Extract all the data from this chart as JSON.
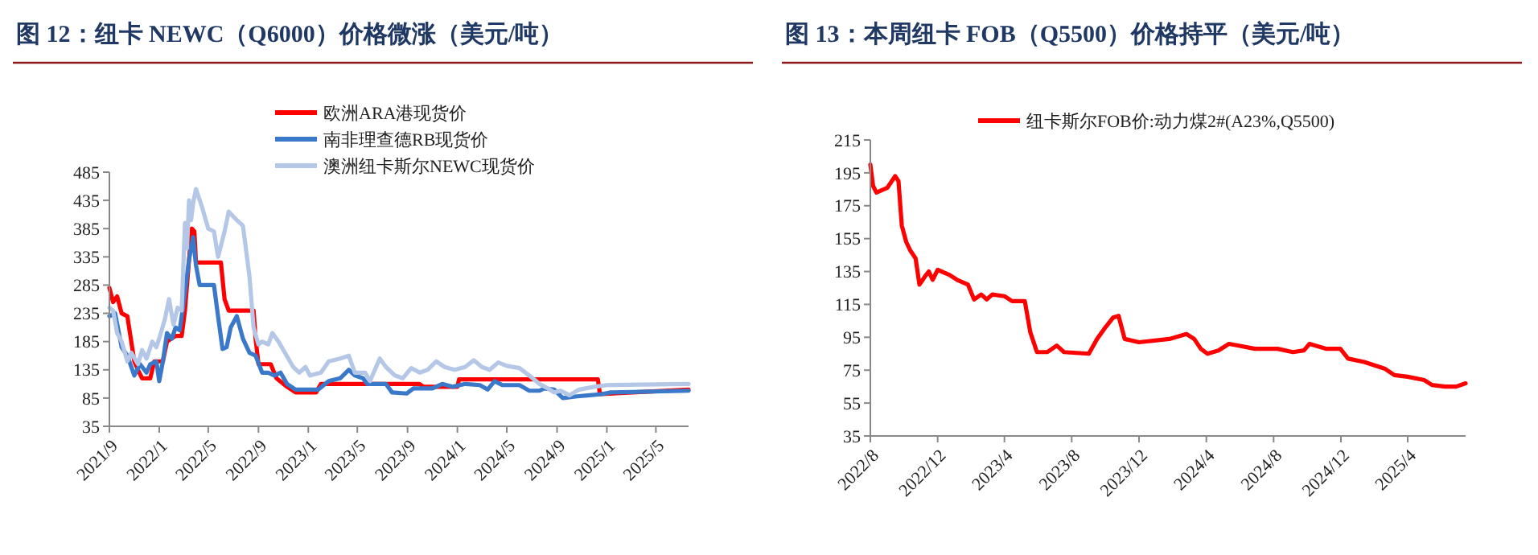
{
  "chart_data": [
    {
      "type": "line",
      "title": "图 12：纽卡 NEWC（Q6000）价格微涨（美元/吨）",
      "legend": "top",
      "xlim": [
        "2021-09-01",
        "2025-07-20"
      ],
      "xticks": [
        {
          "value": "2021-09-01",
          "label": "2021/9"
        },
        {
          "value": "2022-01-01",
          "label": "2022/1"
        },
        {
          "value": "2022-05-01",
          "label": "2022/5"
        },
        {
          "value": "2022-09-01",
          "label": "2022/9"
        },
        {
          "value": "2023-01-01",
          "label": "2023/1"
        },
        {
          "value": "2023-05-01",
          "label": "2023/5"
        },
        {
          "value": "2023-09-01",
          "label": "2023/9"
        },
        {
          "value": "2024-01-01",
          "label": "2024/1"
        },
        {
          "value": "2024-05-01",
          "label": "2024/5"
        },
        {
          "value": "2024-09-01",
          "label": "2024/9"
        },
        {
          "value": "2025-01-01",
          "label": "2025/1"
        },
        {
          "value": "2025-05-01",
          "label": "2025/5"
        }
      ],
      "ylim": [
        35,
        485
      ],
      "yticks": [
        35,
        85,
        135,
        185,
        235,
        285,
        335,
        385,
        435,
        485
      ],
      "series": [
        {
          "name": "欧洲ARA港现货价",
          "color": "#ff0000",
          "x": [
            "2021-09-01",
            "2021-09-10",
            "2021-09-20",
            "2021-10-01",
            "2021-10-15",
            "2021-11-01",
            "2021-11-10",
            "2021-11-20",
            "2021-12-10",
            "2021-12-20",
            "2022-01-10",
            "2022-01-20",
            "2022-02-10",
            "2022-02-25",
            "2022-03-05",
            "2022-03-15",
            "2022-03-22",
            "2022-03-28",
            "2022-04-01",
            "2022-06-01",
            "2022-06-10",
            "2022-06-20",
            "2022-08-20",
            "2022-08-25",
            "2022-09-01",
            "2022-10-01",
            "2022-10-15",
            "2022-11-10",
            "2022-12-01",
            "2023-01-20",
            "2023-02-01",
            "2023-09-30",
            "2023-10-10",
            "2024-01-01",
            "2024-01-05",
            "2024-12-10",
            "2024-12-15",
            "2025-07-20"
          ],
          "values": [
            280,
            255,
            265,
            235,
            230,
            150,
            135,
            120,
            120,
            150,
            150,
            185,
            195,
            195,
            240,
            330,
            385,
            380,
            325,
            325,
            260,
            240,
            240,
            190,
            145,
            145,
            120,
            105,
            95,
            95,
            110,
            110,
            105,
            105,
            118,
            118,
            92,
            100
          ]
        },
        {
          "name": "南非理查德RB现货价",
          "color": "#3a78c9",
          "x": [
            "2021-09-01",
            "2021-09-15",
            "2021-10-01",
            "2021-10-15",
            "2021-11-01",
            "2021-11-15",
            "2021-12-01",
            "2021-12-10",
            "2021-12-25",
            "2022-01-01",
            "2022-01-10",
            "2022-01-20",
            "2022-02-01",
            "2022-02-10",
            "2022-02-20",
            "2022-03-01",
            "2022-03-15",
            "2022-03-25",
            "2022-04-01",
            "2022-04-10",
            "2022-05-15",
            "2022-05-25",
            "2022-06-05",
            "2022-06-15",
            "2022-06-25",
            "2022-07-10",
            "2022-07-25",
            "2022-08-10",
            "2022-08-25",
            "2022-09-10",
            "2022-09-25",
            "2022-10-10",
            "2022-10-25",
            "2022-11-10",
            "2022-12-01",
            "2023-01-10",
            "2023-01-25",
            "2023-02-20",
            "2023-03-20",
            "2023-04-10",
            "2023-04-25",
            "2023-05-15",
            "2023-05-25",
            "2023-07-10",
            "2023-07-25",
            "2023-08-30",
            "2023-09-15",
            "2023-11-01",
            "2023-11-25",
            "2023-12-20",
            "2024-01-20",
            "2024-02-25",
            "2024-03-15",
            "2024-04-01",
            "2024-04-20",
            "2024-06-01",
            "2024-06-25",
            "2024-07-20",
            "2024-08-01",
            "2024-08-25",
            "2024-09-15",
            "2024-10-20",
            "2024-11-20",
            "2024-12-20",
            "2025-01-10",
            "2025-07-20"
          ],
          "values": [
            230,
            235,
            175,
            160,
            125,
            145,
            130,
            145,
            150,
            115,
            150,
            200,
            190,
            210,
            205,
            250,
            330,
            370,
            320,
            285,
            285,
            230,
            172,
            175,
            210,
            230,
            190,
            165,
            160,
            130,
            130,
            125,
            130,
            110,
            100,
            100,
            100,
            115,
            120,
            135,
            125,
            120,
            110,
            110,
            95,
            93,
            102,
            102,
            110,
            105,
            110,
            108,
            100,
            115,
            108,
            108,
            98,
            98,
            102,
            100,
            85,
            88,
            90,
            92,
            95,
            98
          ]
        },
        {
          "name": "澳洲纽卡斯尔NEWC现货价",
          "color": "#b4c7e7",
          "x": [
            "2021-09-01",
            "2021-09-10",
            "2021-09-20",
            "2021-10-01",
            "2021-10-15",
            "2021-10-25",
            "2021-11-10",
            "2021-11-20",
            "2021-12-01",
            "2021-12-15",
            "2021-12-25",
            "2022-01-05",
            "2022-01-15",
            "2022-01-25",
            "2022-02-05",
            "2022-02-15",
            "2022-02-25",
            "2022-03-05",
            "2022-03-10",
            "2022-03-15",
            "2022-03-20",
            "2022-03-25",
            "2022-04-01",
            "2022-04-15",
            "2022-05-01",
            "2022-05-15",
            "2022-05-25",
            "2022-06-10",
            "2022-06-20",
            "2022-07-10",
            "2022-07-25",
            "2022-08-10",
            "2022-08-20",
            "2022-09-01",
            "2022-09-10",
            "2022-09-25",
            "2022-10-05",
            "2022-10-20",
            "2022-11-05",
            "2022-11-25",
            "2022-12-10",
            "2022-12-25",
            "2023-01-05",
            "2023-02-01",
            "2023-02-20",
            "2023-03-20",
            "2023-04-10",
            "2023-04-25",
            "2023-05-20",
            "2023-06-01",
            "2023-06-25",
            "2023-07-10",
            "2023-08-01",
            "2023-08-20",
            "2023-09-10",
            "2023-10-01",
            "2023-10-20",
            "2023-11-10",
            "2023-12-01",
            "2023-12-25",
            "2024-01-20",
            "2024-02-10",
            "2024-03-01",
            "2024-03-20",
            "2024-04-10",
            "2024-05-01",
            "2024-06-01",
            "2024-06-25",
            "2024-07-20",
            "2024-08-10",
            "2024-08-25",
            "2024-09-10",
            "2024-10-01",
            "2024-10-25",
            "2024-12-01",
            "2025-01-01",
            "2025-07-20"
          ],
          "values": [
            245,
            240,
            200,
            185,
            150,
            165,
            145,
            170,
            155,
            185,
            175,
            200,
            225,
            260,
            215,
            245,
            240,
            395,
            350,
            435,
            400,
            430,
            455,
            425,
            385,
            380,
            335,
            380,
            415,
            400,
            390,
            300,
            210,
            180,
            185,
            180,
            200,
            185,
            165,
            140,
            130,
            140,
            125,
            130,
            150,
            155,
            160,
            130,
            130,
            115,
            155,
            140,
            125,
            120,
            138,
            130,
            135,
            150,
            140,
            135,
            140,
            152,
            140,
            135,
            148,
            142,
            138,
            125,
            110,
            102,
            95,
            98,
            90,
            100,
            105,
            108,
            110
          ]
        }
      ]
    },
    {
      "type": "line",
      "title": "图 13：本周纽卡 FOB（Q5500）价格持平（美元/吨）",
      "legend": "top",
      "xlim": [
        "2022-08-01",
        "2025-07-15"
      ],
      "xticks": [
        {
          "value": "2022-08-01",
          "label": "2022/8"
        },
        {
          "value": "2022-12-01",
          "label": "2022/12"
        },
        {
          "value": "2023-04-01",
          "label": "2023/4"
        },
        {
          "value": "2023-08-01",
          "label": "2023/8"
        },
        {
          "value": "2023-12-01",
          "label": "2023/12"
        },
        {
          "value": "2024-04-01",
          "label": "2024/4"
        },
        {
          "value": "2024-08-01",
          "label": "2024/8"
        },
        {
          "value": "2024-12-01",
          "label": "2024/12"
        },
        {
          "value": "2025-04-01",
          "label": "2025/4"
        }
      ],
      "ylim": [
        35,
        215
      ],
      "yticks": [
        35,
        55,
        75,
        95,
        115,
        135,
        155,
        175,
        195,
        215
      ],
      "series": [
        {
          "name": "纽卡斯尔FOB价:动力煤2#(A23%,Q5500)",
          "color": "#ff0000",
          "x": [
            "2022-08-01",
            "2022-08-06",
            "2022-08-12",
            "2022-09-01",
            "2022-09-15",
            "2022-09-21",
            "2022-09-27",
            "2022-10-05",
            "2022-10-12",
            "2022-10-22",
            "2022-10-29",
            "2022-11-08",
            "2022-11-15",
            "2022-11-22",
            "2022-12-01",
            "2022-12-22",
            "2023-01-05",
            "2023-01-25",
            "2023-02-05",
            "2023-02-18",
            "2023-02-28",
            "2023-03-10",
            "2023-04-01",
            "2023-04-15",
            "2023-05-08",
            "2023-05-18",
            "2023-05-30",
            "2023-06-18",
            "2023-07-05",
            "2023-07-18",
            "2023-09-01",
            "2023-09-16",
            "2023-10-01",
            "2023-10-15",
            "2023-10-25",
            "2023-11-05",
            "2023-12-01",
            "2024-01-25",
            "2024-02-25",
            "2024-03-10",
            "2024-03-22",
            "2024-04-03",
            "2024-04-23",
            "2024-05-12",
            "2024-05-28",
            "2024-06-28",
            "2024-08-08",
            "2024-09-05",
            "2024-09-25",
            "2024-10-05",
            "2024-11-05",
            "2024-11-30",
            "2024-12-14",
            "2025-01-12",
            "2025-02-18",
            "2025-03-08",
            "2025-04-01",
            "2025-05-01",
            "2025-05-15",
            "2025-06-08",
            "2025-06-28",
            "2025-07-15"
          ],
          "values": [
            200,
            187,
            183,
            186,
            193,
            190,
            163,
            153,
            148,
            143,
            127,
            132,
            135,
            130,
            136,
            133,
            130,
            127,
            118,
            121,
            118,
            121,
            120,
            117,
            117,
            98,
            86,
            86,
            90,
            86,
            85,
            94,
            101,
            107,
            108,
            94,
            92,
            94,
            97,
            94,
            88,
            85,
            87,
            91,
            90,
            88,
            88,
            86,
            87,
            91,
            88,
            88,
            82,
            80,
            76,
            72,
            71,
            69,
            66,
            65,
            65,
            67
          ]
        }
      ]
    }
  ]
}
